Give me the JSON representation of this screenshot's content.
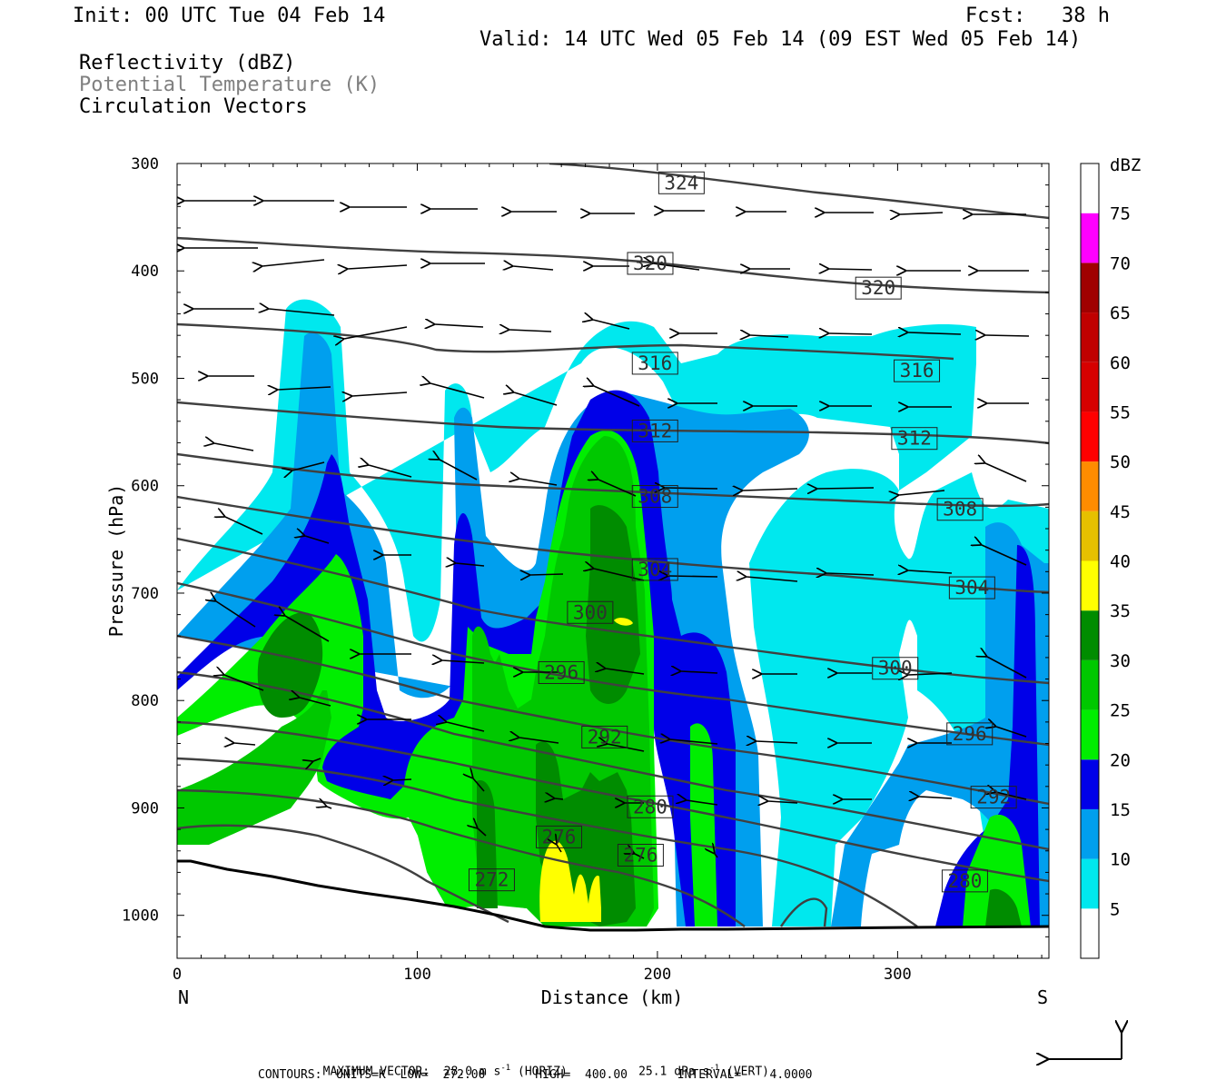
{
  "header": {
    "init": "Init: 00 UTC Tue 04 Feb 14",
    "fcst": "Fcst:   38 h",
    "valid": "Valid: 14 UTC Wed 05 Feb 14 (09 EST Wed 05 Feb 14)"
  },
  "fields": {
    "reflectivity": "Reflectivity (dBZ)",
    "theta": "Potential Temperature (K)",
    "vectors": "Circulation Vectors"
  },
  "footer": {
    "maxvec_a": "MAXIMUM VECTOR:  28.0 m s",
    "maxvec_b": "(HORIZ)",
    "maxvec_c": "25.1 dPa s",
    "maxvec_d": "(VERT)",
    "sup": "-1",
    "contours": "CONTOURS:  UNITS=K  LOW=  272.00       HIGH=  400.00       INTERVAL=    4.0000"
  },
  "colors": {
    "c5": "#00e8ee",
    "c10": "#009fee",
    "c15": "#0000e8",
    "c20": "#00ee00",
    "c25": "#00c800",
    "c30": "#008c00",
    "c35": "#ffff00",
    "c40": "#e6c000",
    "c45": "#ff8c00",
    "c50": "#ff0000",
    "c55": "#d60000",
    "c60": "#c00000",
    "c65": "#a00000",
    "c70": "#ff00ff",
    "c75": "#9955cc",
    "contour": "#404040"
  },
  "chart_data": {
    "type": "cross-section",
    "xlabel": "Distance (km)",
    "ylabel": "Pressure (hPa)",
    "x_ticks": [
      0,
      100,
      200,
      300
    ],
    "y_ticks": [
      300,
      400,
      500,
      600,
      700,
      800,
      900,
      1000
    ],
    "xlim": [
      0,
      363
    ],
    "ylim": [
      1040,
      300
    ],
    "x_end_labels": {
      "left": "N",
      "right": "S"
    },
    "colorbar": {
      "unit": "dBZ",
      "levels": [
        5,
        10,
        15,
        20,
        25,
        30,
        35,
        40,
        45,
        50,
        55,
        60,
        65,
        70,
        75
      ]
    },
    "theta_contour_labels": [
      {
        "value": "324",
        "x": 210,
        "p": 318
      },
      {
        "value": "320",
        "x": 197,
        "p": 393
      },
      {
        "value": "320",
        "x": 292,
        "p": 416
      },
      {
        "value": "316",
        "x": 199,
        "p": 486
      },
      {
        "value": "316",
        "x": 308,
        "p": 493
      },
      {
        "value": "312",
        "x": 199,
        "p": 549
      },
      {
        "value": "312",
        "x": 307,
        "p": 556
      },
      {
        "value": "308",
        "x": 199,
        "p": 610
      },
      {
        "value": "308",
        "x": 326,
        "p": 622
      },
      {
        "value": "304",
        "x": 199,
        "p": 678
      },
      {
        "value": "304",
        "x": 331,
        "p": 695
      },
      {
        "value": "300",
        "x": 172,
        "p": 718
      },
      {
        "value": "300",
        "x": 299,
        "p": 770
      },
      {
        "value": "296",
        "x": 160,
        "p": 774
      },
      {
        "value": "296",
        "x": 330,
        "p": 831
      },
      {
        "value": "292",
        "x": 178,
        "p": 834
      },
      {
        "value": "292",
        "x": 340,
        "p": 890
      },
      {
        "value": "280",
        "x": 197,
        "p": 899
      },
      {
        "value": "276",
        "x": 159,
        "p": 927
      },
      {
        "value": "276",
        "x": 193,
        "p": 944
      },
      {
        "value": "272",
        "x": 131,
        "p": 967
      },
      {
        "value": "280",
        "x": 328,
        "p": 968
      }
    ],
    "max_vector_horizontal_m_s": 28.0,
    "max_vector_vertical_dPa_s": 25.1,
    "contour_low_K": 272.0,
    "contour_high_K": 400.0,
    "contour_interval_K": 4.0
  }
}
